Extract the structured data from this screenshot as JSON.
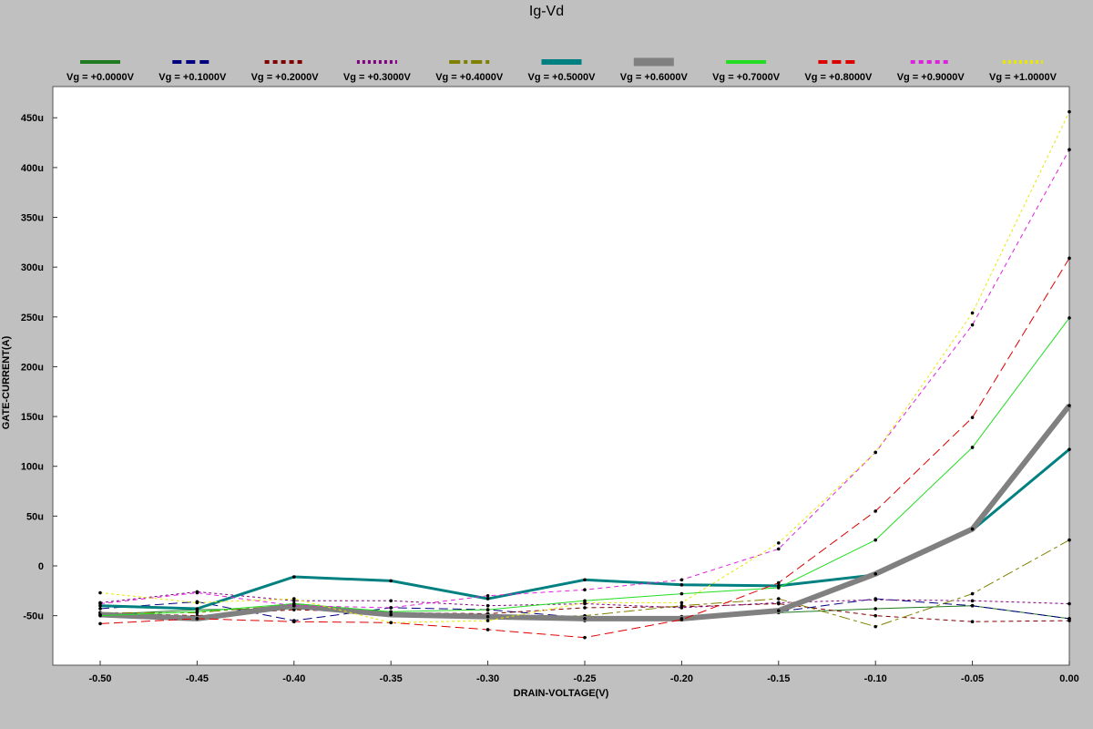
{
  "chart_data": {
    "type": "line",
    "title": "Ig-Vd",
    "xlabel": "DRAIN-VOLTAGE(V)",
    "ylabel": "GATE-CURRENT(A)",
    "xlim": [
      -0.5,
      0.0
    ],
    "ylim": [
      -100,
      460
    ],
    "x": [
      -0.5,
      -0.45,
      -0.4,
      -0.35,
      -0.3,
      -0.25,
      -0.2,
      -0.15,
      -0.1,
      -0.05,
      0.0
    ],
    "x_ticks": [
      {
        "value": -0.5,
        "label": "-0.50"
      },
      {
        "value": -0.45,
        "label": "-0.45"
      },
      {
        "value": -0.4,
        "label": "-0.40"
      },
      {
        "value": -0.35,
        "label": "-0.35"
      },
      {
        "value": -0.3,
        "label": "-0.30"
      },
      {
        "value": -0.25,
        "label": "-0.25"
      },
      {
        "value": -0.2,
        "label": "-0.20"
      },
      {
        "value": -0.15,
        "label": "-0.15"
      },
      {
        "value": -0.1,
        "label": "-0.10"
      },
      {
        "value": -0.05,
        "label": "-0.05"
      },
      {
        "value": 0.0,
        "label": "0.00"
      }
    ],
    "y_ticks": [
      {
        "value": 450,
        "label": "450u"
      },
      {
        "value": 400,
        "label": "400u"
      },
      {
        "value": 350,
        "label": "350u"
      },
      {
        "value": 300,
        "label": "300u"
      },
      {
        "value": 250,
        "label": "250u"
      },
      {
        "value": 200,
        "label": "200u"
      },
      {
        "value": 150,
        "label": "150u"
      },
      {
        "value": 100,
        "label": "100u"
      },
      {
        "value": 50,
        "label": "50u"
      },
      {
        "value": 0,
        "label": "0"
      },
      {
        "value": -50,
        "label": "-50u"
      }
    ],
    "unit": "uA",
    "legend_position": "top",
    "grid": false,
    "series": [
      {
        "name": "Vg = +0.0000V",
        "color": "#207a20",
        "dash": "solid",
        "width": 1,
        "values": [
          -49,
          -44,
          -43,
          -47,
          -52,
          -55,
          -51,
          -47,
          -43,
          -40,
          -53
        ]
      },
      {
        "name": "Vg = +0.1000V",
        "color": "#000080",
        "dash": "long",
        "width": 1,
        "values": [
          -43,
          -36,
          -55,
          -42,
          -44,
          -52,
          -51,
          -46,
          -33,
          -40,
          -53
        ]
      },
      {
        "name": "Vg = +0.2000V",
        "color": "#800000",
        "dash": "short",
        "width": 1,
        "values": [
          -47,
          -50,
          -44,
          -47,
          -48,
          -42,
          -41,
          -38,
          -50,
          -56,
          -55
        ]
      },
      {
        "name": "Vg = +0.3000V",
        "color": "#800080",
        "dash": "dashdot",
        "width": 1,
        "values": [
          -37,
          -26,
          -35,
          -35,
          -40,
          -38,
          -42,
          -37,
          -34,
          -35,
          -38
        ]
      },
      {
        "name": "Vg = +0.4000V",
        "color": "#808000",
        "dash": "longshort",
        "width": 1,
        "values": [
          -47,
          -47,
          -39,
          -48,
          -52,
          -50,
          -40,
          -33,
          -61,
          -28,
          26
        ]
      },
      {
        "name": "Vg = +0.5000V",
        "color": "#008080",
        "dash": "solid",
        "width": 3,
        "values": [
          -40,
          -43,
          -11,
          -15,
          -33,
          -14,
          -19,
          -20,
          -9,
          36,
          117
        ]
      },
      {
        "name": "Vg = +0.6000V",
        "color": "#808080",
        "dash": "solid",
        "width": 6,
        "values": [
          -49,
          -53,
          -40,
          -49,
          -51,
          -53,
          -53,
          -45,
          -8,
          37,
          161
        ]
      },
      {
        "name": "Vg = +0.7000V",
        "color": "#22dd22",
        "dash": "solid",
        "width": 1,
        "values": [
          -50,
          -46,
          -38,
          -46,
          -44,
          -35,
          -28,
          -22,
          26,
          119,
          249
        ]
      },
      {
        "name": "Vg = +0.8000V",
        "color": "#dd0000",
        "dash": "long",
        "width": 1,
        "values": [
          -58,
          -53,
          -56,
          -57,
          -64,
          -72,
          -54,
          -17,
          55,
          149,
          309
        ]
      },
      {
        "name": "Vg = +0.9000V",
        "color": "#dd22dd",
        "dash": "short",
        "width": 1,
        "values": [
          -38,
          -27,
          -40,
          -42,
          -30,
          -24,
          -14,
          17,
          114,
          242,
          418
        ]
      },
      {
        "name": "Vg = +1.0000V",
        "color": "#e8e800",
        "dash": "dashdot",
        "width": 1,
        "values": [
          -27,
          -37,
          -33,
          -57,
          -55,
          -37,
          -37,
          23,
          114,
          254,
          456
        ]
      }
    ]
  }
}
